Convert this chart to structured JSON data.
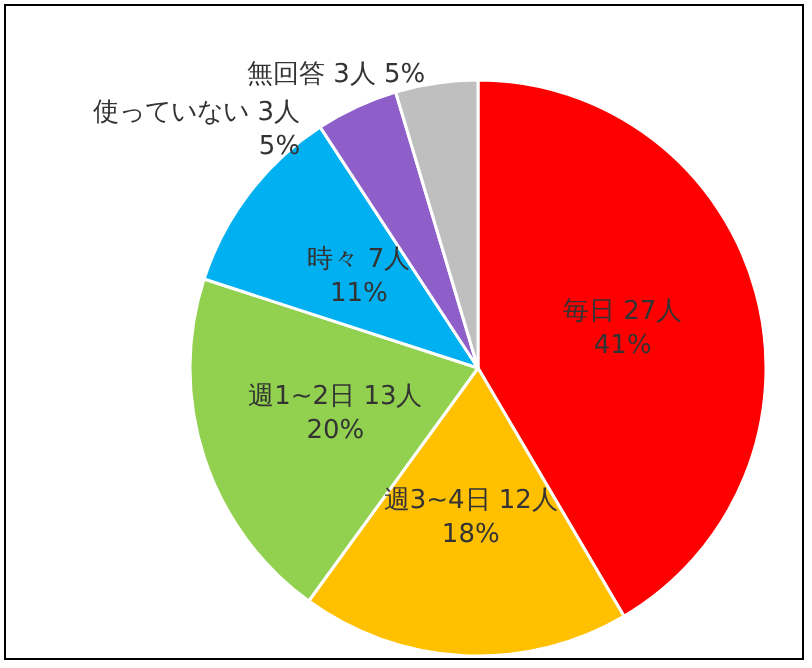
{
  "chart_data": {
    "type": "pie",
    "categories": [
      "毎日",
      "週3~4日",
      "週1~2日",
      "時々",
      "使っていない",
      "無回答"
    ],
    "values": [
      27,
      12,
      13,
      7,
      3,
      3
    ],
    "colors": [
      "#ff0000",
      "#ffc000",
      "#92d050",
      "#00b0f0",
      "#8e5fc8",
      "#bfbfbf"
    ],
    "value_labels": [
      "27人\n41%",
      "12人\n18%",
      "13人\n20%",
      "7人\n11%",
      "3人\n5%",
      "3人 5%"
    ],
    "legend": false
  }
}
